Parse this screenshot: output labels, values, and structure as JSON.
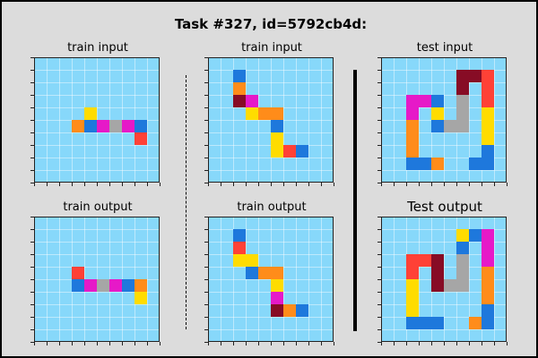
{
  "title": "Task #327, id=5792cb4d:",
  "colors": {
    "B": "#1e78dc",
    "O": "#ff8c1a",
    "M": "#e619c8",
    "G": "#a6a6a6",
    "R": "#ff4136",
    "Y": "#ffdc00",
    "D": "#870c25",
    "bg": "#87d8fa"
  },
  "panels": [
    {
      "label": "train input",
      "rows": [
        "..........",
        "..........",
        "..........",
        "..........",
        "....Y.....",
        "...OBMGMB.",
        "........R.",
        "..........",
        "..........",
        ".........."
      ]
    },
    {
      "label": "train input",
      "rows": [
        "..........",
        "..B.......",
        "..O.......",
        "..DM......",
        "...YOO....",
        ".....B....",
        ".....Y....",
        ".....YRB..",
        "..........",
        ".........."
      ]
    },
    {
      "label": "test input",
      "rows": [
        "..........",
        "......DDR.",
        "......D.R.",
        "..MMB.G.R.",
        "..M.Y.G.Y.",
        "..O.BGG.Y.",
        "..O.....Y.",
        "..O.....B.",
        "..BBO..BB.",
        ".........."
      ]
    },
    {
      "label": "train output",
      "rows": [
        "..........",
        "..........",
        "..........",
        "..........",
        "...R......",
        "...BMGMBO.",
        "........Y.",
        "..........",
        "..........",
        ".........."
      ]
    },
    {
      "label": "train output",
      "rows": [
        "..........",
        "..B.......",
        "..R.......",
        "..YY......",
        "...BOO....",
        ".....Y....",
        ".....M....",
        ".....DOB..",
        "..........",
        ".........."
      ]
    },
    {
      "label": "Test output",
      "rows": [
        "..........",
        "......YBM.",
        "......B.M.",
        "..RRD.G.M.",
        "..R.D.G.O.",
        "..Y.DGG.O.",
        "..Y.....O.",
        "..Y.....B.",
        "..BBB..OB.",
        ".........."
      ]
    }
  ]
}
